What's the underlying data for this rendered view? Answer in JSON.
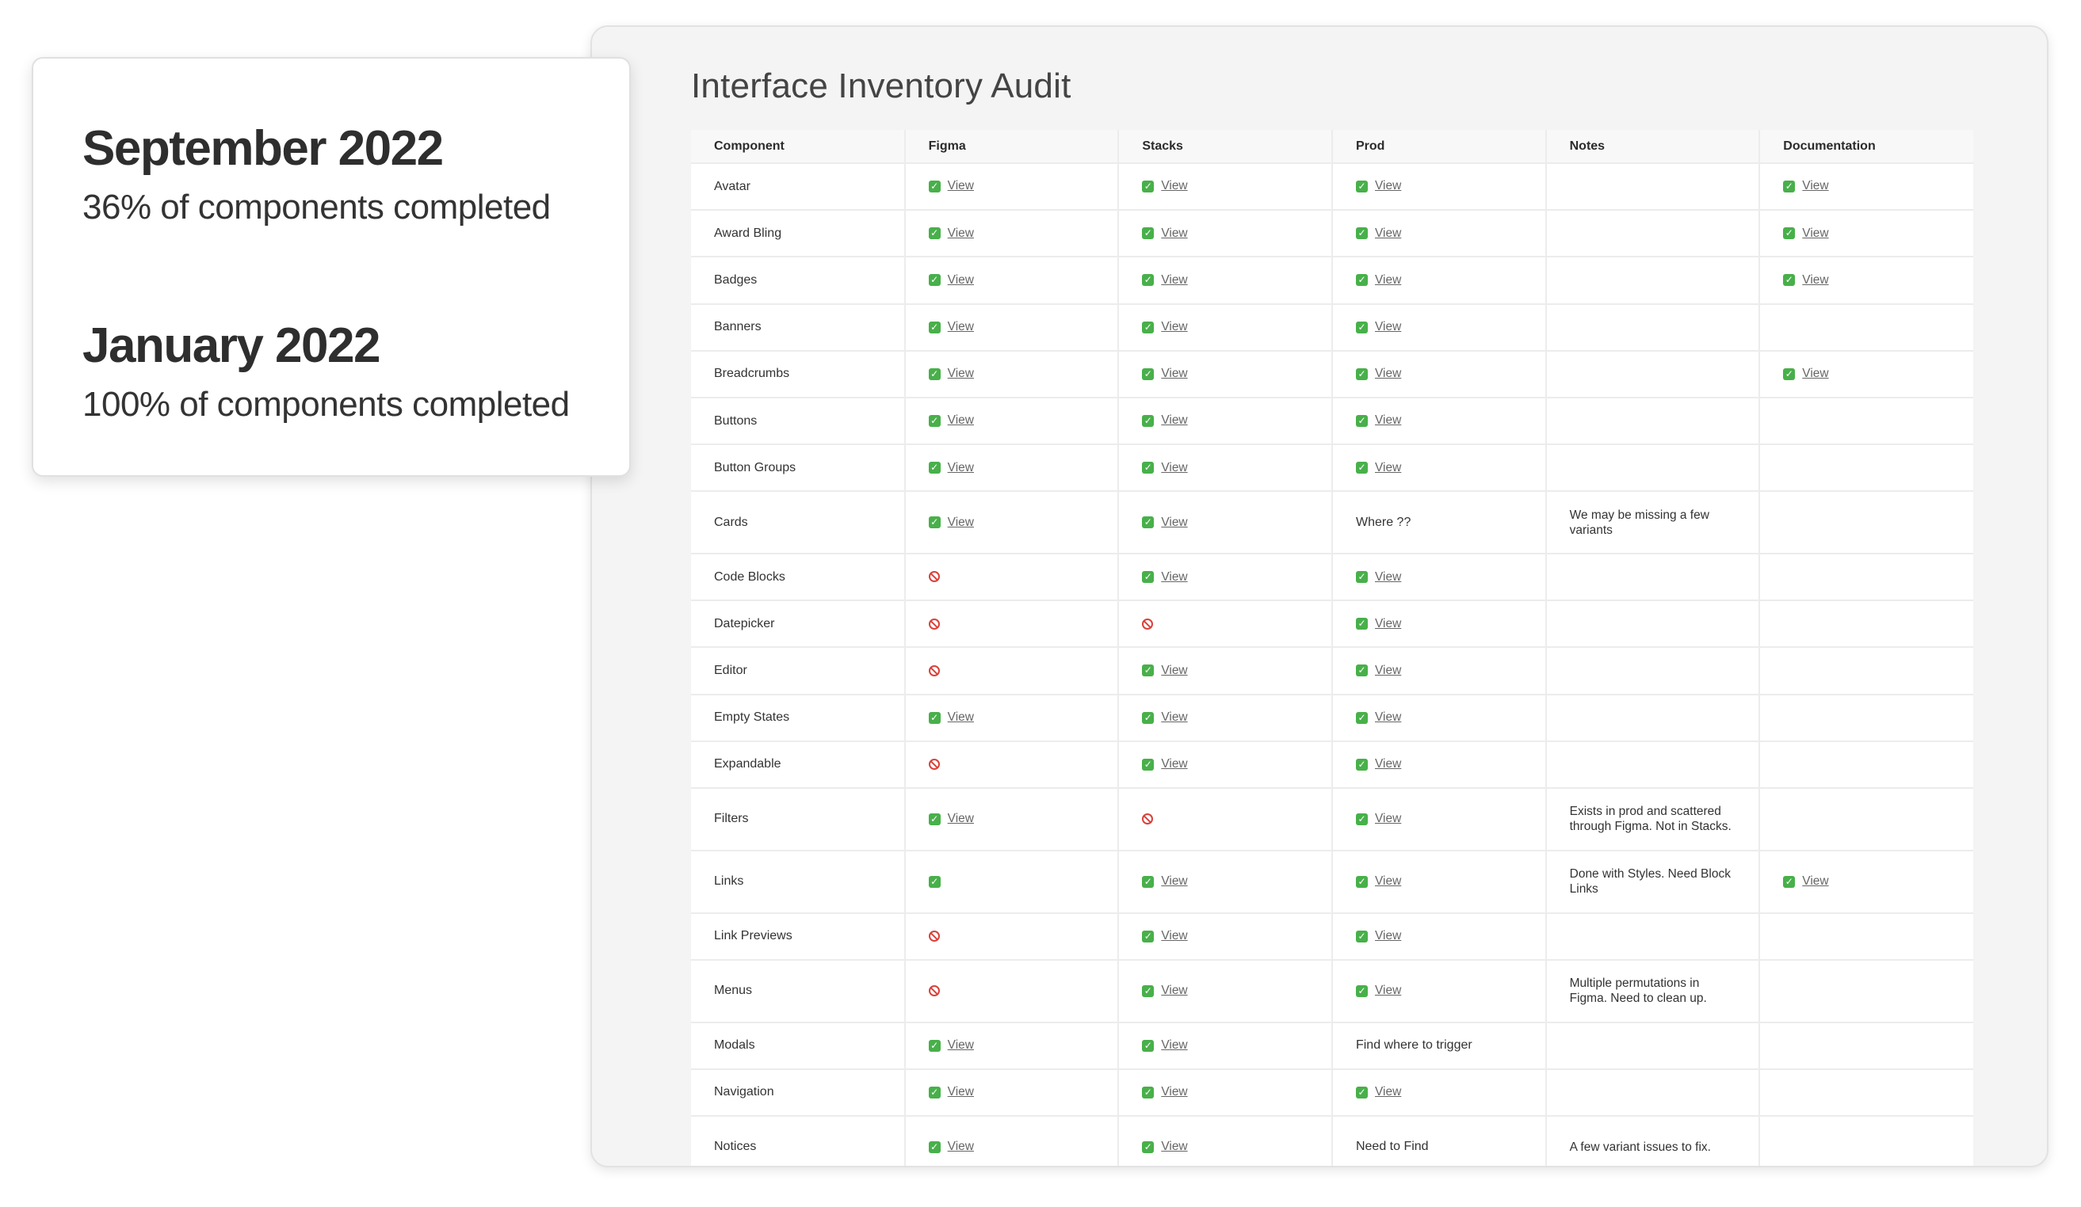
{
  "summary": {
    "items": [
      {
        "heading": "September 2022",
        "subtext": "36% of components completed"
      },
      {
        "heading": "January 2022",
        "subtext": "100% of components completed"
      }
    ]
  },
  "audit": {
    "title": "Interface Inventory Audit",
    "columns": [
      "Component",
      "Figma",
      "Stacks",
      "Prod",
      "Notes",
      "Documentation"
    ],
    "link_label": "View",
    "rows": [
      {
        "component": "Avatar",
        "figma": {
          "status": "check",
          "link": true
        },
        "stacks": {
          "status": "check",
          "link": true
        },
        "prod": {
          "status": "check",
          "link": true
        },
        "notes": "",
        "documentation": {
          "status": "check",
          "link": true
        }
      },
      {
        "component": "Award Bling",
        "figma": {
          "status": "check",
          "link": true
        },
        "stacks": {
          "status": "check",
          "link": true
        },
        "prod": {
          "status": "check",
          "link": true
        },
        "notes": "",
        "documentation": {
          "status": "check",
          "link": true
        }
      },
      {
        "component": "Badges",
        "figma": {
          "status": "check",
          "link": true
        },
        "stacks": {
          "status": "check",
          "link": true
        },
        "prod": {
          "status": "check",
          "link": true
        },
        "notes": "",
        "documentation": {
          "status": "check",
          "link": true
        }
      },
      {
        "component": "Banners",
        "figma": {
          "status": "check",
          "link": true
        },
        "stacks": {
          "status": "check",
          "link": true
        },
        "prod": {
          "status": "check",
          "link": true
        },
        "notes": "",
        "documentation": {
          "status": "none"
        }
      },
      {
        "component": "Breadcrumbs",
        "figma": {
          "status": "check",
          "link": true
        },
        "stacks": {
          "status": "check",
          "link": true
        },
        "prod": {
          "status": "check",
          "link": true
        },
        "notes": "",
        "documentation": {
          "status": "check",
          "link": true
        }
      },
      {
        "component": "Buttons",
        "figma": {
          "status": "check",
          "link": true
        },
        "stacks": {
          "status": "check",
          "link": true
        },
        "prod": {
          "status": "check",
          "link": true
        },
        "notes": "",
        "documentation": {
          "status": "none"
        }
      },
      {
        "component": "Button Groups",
        "figma": {
          "status": "check",
          "link": true
        },
        "stacks": {
          "status": "check",
          "link": true
        },
        "prod": {
          "status": "check",
          "link": true
        },
        "notes": "",
        "documentation": {
          "status": "none"
        }
      },
      {
        "component": "Cards",
        "figma": {
          "status": "check",
          "link": true
        },
        "stacks": {
          "status": "check",
          "link": true
        },
        "prod": {
          "status": "text",
          "text": "Where ??"
        },
        "notes": "We may be missing a few variants",
        "documentation": {
          "status": "none"
        }
      },
      {
        "component": "Code Blocks",
        "figma": {
          "status": "no"
        },
        "stacks": {
          "status": "check",
          "link": true
        },
        "prod": {
          "status": "check",
          "link": true
        },
        "notes": "",
        "documentation": {
          "status": "none"
        }
      },
      {
        "component": "Datepicker",
        "figma": {
          "status": "no"
        },
        "stacks": {
          "status": "no"
        },
        "prod": {
          "status": "check",
          "link": true
        },
        "notes": "",
        "documentation": {
          "status": "none"
        }
      },
      {
        "component": "Editor",
        "figma": {
          "status": "no"
        },
        "stacks": {
          "status": "check",
          "link": true
        },
        "prod": {
          "status": "check",
          "link": true
        },
        "notes": "",
        "documentation": {
          "status": "none"
        }
      },
      {
        "component": "Empty States",
        "figma": {
          "status": "check",
          "link": true
        },
        "stacks": {
          "status": "check",
          "link": true
        },
        "prod": {
          "status": "check",
          "link": true
        },
        "notes": "",
        "documentation": {
          "status": "none"
        }
      },
      {
        "component": "Expandable",
        "figma": {
          "status": "no"
        },
        "stacks": {
          "status": "check",
          "link": true
        },
        "prod": {
          "status": "check",
          "link": true
        },
        "notes": "",
        "documentation": {
          "status": "none"
        }
      },
      {
        "component": "Filters",
        "figma": {
          "status": "check",
          "link": true
        },
        "stacks": {
          "status": "no"
        },
        "prod": {
          "status": "check",
          "link": true
        },
        "notes": "Exists in prod and scattered through Figma. Not in Stacks.",
        "documentation": {
          "status": "none"
        }
      },
      {
        "component": "Links",
        "figma": {
          "status": "check",
          "link": false
        },
        "stacks": {
          "status": "check",
          "link": true
        },
        "prod": {
          "status": "check",
          "link": true
        },
        "notes": "Done with Styles. Need Block Links",
        "documentation": {
          "status": "check",
          "link": true
        }
      },
      {
        "component": "Link Previews",
        "figma": {
          "status": "no"
        },
        "stacks": {
          "status": "check",
          "link": true
        },
        "prod": {
          "status": "check",
          "link": true
        },
        "notes": "",
        "documentation": {
          "status": "none"
        }
      },
      {
        "component": "Menus",
        "figma": {
          "status": "no"
        },
        "stacks": {
          "status": "check",
          "link": true
        },
        "prod": {
          "status": "check",
          "link": true
        },
        "notes": "Multiple permutations in Figma. Need to clean up.",
        "documentation": {
          "status": "none"
        }
      },
      {
        "component": "Modals",
        "figma": {
          "status": "check",
          "link": true
        },
        "stacks": {
          "status": "check",
          "link": true
        },
        "prod": {
          "status": "text",
          "text": "Find where to trigger"
        },
        "notes": "",
        "documentation": {
          "status": "none"
        }
      },
      {
        "component": "Navigation",
        "figma": {
          "status": "check",
          "link": true
        },
        "stacks": {
          "status": "check",
          "link": true
        },
        "prod": {
          "status": "check",
          "link": true
        },
        "notes": "",
        "documentation": {
          "status": "none"
        }
      },
      {
        "component": "Notices",
        "figma": {
          "status": "check",
          "link": true
        },
        "stacks": {
          "status": "check",
          "link": true
        },
        "prod": {
          "status": "text",
          "text": "Need to Find"
        },
        "notes": "A few variant issues to fix.",
        "documentation": {
          "status": "none"
        }
      }
    ]
  },
  "icons": {
    "check": "green-checkmark-icon",
    "no": "red-prohibited-icon"
  }
}
